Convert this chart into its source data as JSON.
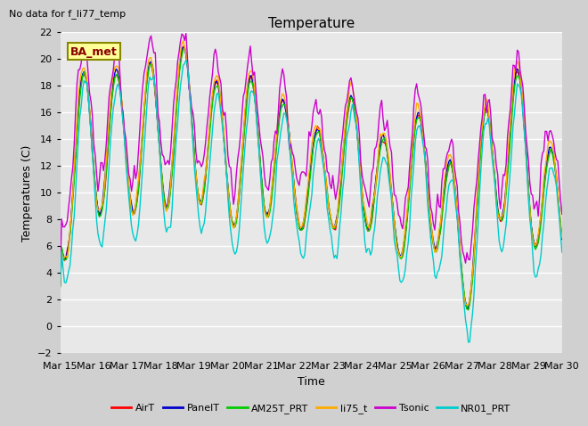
{
  "title": "Temperature",
  "xlabel": "Time",
  "ylabel": "Temperatures (C)",
  "top_left_text": "No data for f_li77_temp",
  "annotation_text": "BA_met",
  "ylim": [
    -2,
    22
  ],
  "yticks": [
    -2,
    0,
    2,
    4,
    6,
    8,
    10,
    12,
    14,
    16,
    18,
    20,
    22
  ],
  "xtick_labels": [
    "Mar 15",
    "Mar 16",
    "Mar 17",
    "Mar 18",
    "Mar 19",
    "Mar 20",
    "Mar 21",
    "Mar 22",
    "Mar 23",
    "Mar 24",
    "Mar 25",
    "Mar 26",
    "Mar 27",
    "Mar 28",
    "Mar 29",
    "Mar 30"
  ],
  "series_colors": {
    "AirT": "#ff0000",
    "PanelT": "#0000cc",
    "AM25T_PRT": "#00cc00",
    "li75_t": "#ffaa00",
    "Tsonic": "#cc00cc",
    "NR01_PRT": "#00cccc"
  },
  "legend_entries": [
    "AirT",
    "PanelT",
    "AM25T_PRT",
    "li75_t",
    "Tsonic",
    "NR01_PRT"
  ],
  "fig_facecolor": "#d0d0d0",
  "plot_facecolor": "#e8e8e8",
  "grid_color": "#ffffff",
  "title_fontsize": 11,
  "label_fontsize": 9,
  "tick_fontsize": 8
}
